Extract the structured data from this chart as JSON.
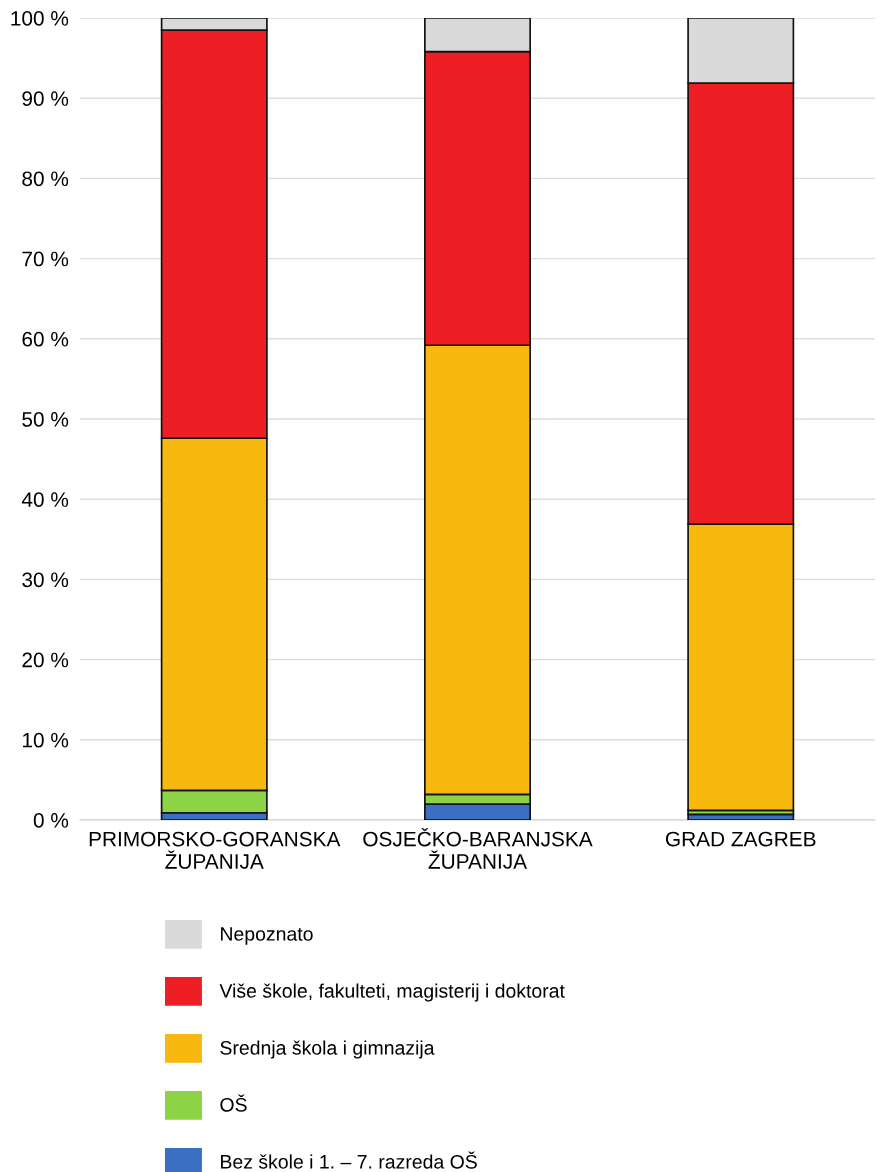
{
  "chart_data": {
    "type": "bar",
    "stacked": true,
    "categories": [
      "PRIMORSKO-GORANSKA\nŽUPANIJA",
      "OSJEČKO-BARANJSKA\nŽUPANIJA",
      "GRAD ZAGREB"
    ],
    "series": [
      {
        "name": "Bez škole i 1. – 7. razreda OŠ",
        "color": "#3a6fc1",
        "values": [
          0.9,
          2.0,
          0.7
        ]
      },
      {
        "name": "OŠ",
        "color": "#8cd345",
        "values": [
          2.8,
          1.2,
          0.5
        ]
      },
      {
        "name": "Srednja škola i gimnazija",
        "color": "#f8b90e",
        "values": [
          43.9,
          56.0,
          35.7
        ]
      },
      {
        "name": "Više škole, fakulteti, magisterij i doktorat",
        "color": "#ed1f24",
        "values": [
          50.9,
          36.6,
          55.0
        ]
      },
      {
        "name": "Nepoznato",
        "color": "#dadada",
        "values": [
          1.5,
          4.2,
          8.1
        ]
      }
    ],
    "ylim": [
      0,
      100
    ],
    "yticks": [
      {
        "value": 0,
        "label": "0 %"
      },
      {
        "value": 10,
        "label": "10 %"
      },
      {
        "value": 20,
        "label": "20 %"
      },
      {
        "value": 30,
        "label": "30 %"
      },
      {
        "value": 40,
        "label": "40 %"
      },
      {
        "value": 50,
        "label": "50 %"
      },
      {
        "value": 60,
        "label": "60 %"
      },
      {
        "value": 70,
        "label": "70 %"
      },
      {
        "value": 80,
        "label": "80 %"
      },
      {
        "value": 90,
        "label": "90 %"
      },
      {
        "value": 100,
        "label": "100 %"
      }
    ],
    "grid": "y",
    "legend": "bottom"
  }
}
